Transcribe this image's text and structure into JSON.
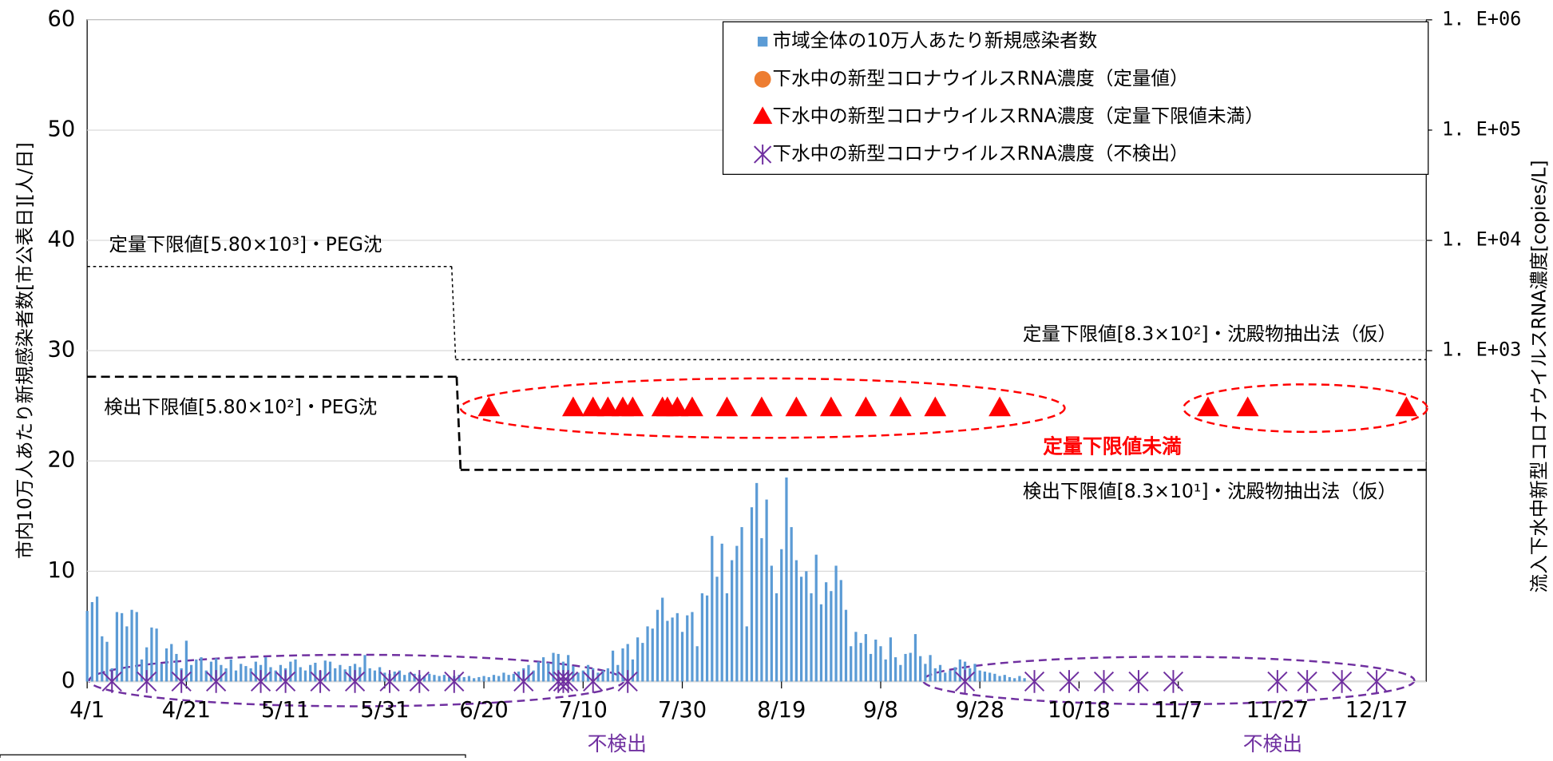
{
  "chart_data": {
    "type": "bar_scatter",
    "ylabel": "市内10万人あたり新規感染者数[市公表日][人/日]",
    "y2label": "流入下水中新型コロナウイルスRNA濃度[copies/L]",
    "xlim": [
      0,
      270
    ],
    "xticks": [
      {
        "value": 0,
        "label": "4/1"
      },
      {
        "value": 20,
        "label": "4/21"
      },
      {
        "value": 40,
        "label": "5/11"
      },
      {
        "value": 60,
        "label": "5/31"
      },
      {
        "value": 80,
        "label": "6/20"
      },
      {
        "value": 100,
        "label": "7/10"
      },
      {
        "value": 120,
        "label": "7/30"
      },
      {
        "value": 140,
        "label": "8/19"
      },
      {
        "value": 160,
        "label": "9/8"
      },
      {
        "value": 180,
        "label": "9/28"
      },
      {
        "value": 200,
        "label": "10/18"
      },
      {
        "value": 220,
        "label": "11/7"
      },
      {
        "value": 240,
        "label": "11/27"
      },
      {
        "value": 260,
        "label": "12/17"
      }
    ],
    "ylim": [
      0,
      60
    ],
    "yticks": [
      0,
      10,
      20,
      30,
      40,
      50,
      60
    ],
    "grid": true,
    "y2lim": [
      1,
      1000000
    ],
    "y2scale": "log",
    "y2ticks": [
      {
        "value": 1000,
        "label": "1. E+03"
      },
      {
        "value": 10000,
        "label": "1. E+04"
      },
      {
        "value": 100000,
        "label": "1. E+05"
      },
      {
        "value": 1000000,
        "label": "1. E+06"
      }
    ],
    "series": [
      {
        "name": "市域全体の10万人あたり新規感染者数",
        "kind": "bar",
        "color": "#5b9bd5",
        "x": [
          0,
          1,
          2,
          3,
          4,
          5,
          6,
          7,
          8,
          9,
          10,
          11,
          12,
          13,
          14,
          15,
          16,
          17,
          18,
          19,
          20,
          21,
          22,
          23,
          24,
          25,
          26,
          27,
          28,
          29,
          30,
          31,
          32,
          33,
          34,
          35,
          36,
          37,
          38,
          39,
          40,
          41,
          42,
          43,
          44,
          45,
          46,
          47,
          48,
          49,
          50,
          51,
          52,
          53,
          54,
          55,
          56,
          57,
          58,
          59,
          60,
          61,
          62,
          63,
          64,
          65,
          66,
          67,
          68,
          69,
          70,
          71,
          72,
          73,
          74,
          75,
          76,
          77,
          78,
          79,
          80,
          81,
          82,
          83,
          84,
          85,
          86,
          87,
          88,
          89,
          90,
          91,
          92,
          93,
          94,
          95,
          96,
          97,
          98,
          99,
          100,
          101,
          102,
          103,
          104,
          105,
          106,
          107,
          108,
          109,
          110,
          111,
          112,
          113,
          114,
          115,
          116,
          117,
          118,
          119,
          120,
          121,
          122,
          123,
          124,
          125,
          126,
          127,
          128,
          129,
          130,
          131,
          132,
          133,
          134,
          135,
          136,
          137,
          138,
          139,
          140,
          141,
          142,
          143,
          144,
          145,
          146,
          147,
          148,
          149,
          150,
          151,
          152,
          153,
          154,
          155,
          156,
          157,
          158,
          159,
          160,
          161,
          162,
          163,
          164,
          165,
          166,
          167,
          168,
          169,
          170,
          171,
          172,
          173,
          174,
          175,
          176,
          177,
          178,
          179,
          180,
          181,
          182,
          183,
          184,
          185,
          186,
          187,
          188,
          189
        ],
        "values": [
          6.4,
          7.2,
          7.7,
          4.1,
          3.6,
          1.2,
          6.3,
          6.2,
          5.0,
          6.5,
          6.3,
          2.0,
          3.1,
          4.9,
          4.8,
          1.6,
          3.0,
          3.4,
          2.5,
          1.2,
          3.7,
          1.5,
          2.0,
          2.2,
          1.0,
          1.8,
          2.1,
          1.5,
          1.2,
          2.0,
          1.0,
          1.6,
          1.4,
          1.2,
          1.8,
          1.5,
          2.2,
          1.3,
          1.0,
          1.5,
          1.2,
          1.8,
          2.0,
          1.3,
          1.0,
          1.5,
          1.7,
          1.0,
          1.9,
          1.8,
          1.2,
          1.5,
          1.1,
          1.4,
          1.6,
          1.3,
          2.4,
          1.2,
          1.0,
          1.3,
          0.8,
          0.7,
          0.9,
          1.0,
          0.6,
          0.8,
          0.7,
          0.6,
          0.5,
          0.7,
          0.6,
          0.5,
          0.6,
          0.4,
          0.5,
          0.6,
          0.4,
          0.5,
          0.3,
          0.4,
          0.5,
          0.4,
          0.6,
          0.5,
          0.8,
          0.6,
          0.7,
          0.9,
          1.2,
          1.5,
          1.0,
          1.8,
          2.2,
          1.7,
          2.6,
          2.5,
          1.8,
          2.4,
          1.4,
          0.8,
          1.0,
          1.5,
          1.2,
          0.8,
          1.0,
          1.2,
          2.8,
          1.5,
          3.0,
          3.4,
          2.0,
          4.0,
          3.5,
          5.0,
          4.8,
          6.5,
          7.6,
          5.5,
          5.8,
          6.2,
          4.5,
          6.0,
          6.3,
          3.2,
          8.0,
          7.8,
          13.2,
          9.5,
          12.5,
          8.0,
          11.0,
          12.3,
          14.0,
          5.0,
          15.8,
          18.0,
          13.0,
          16.5,
          10.5,
          8.0,
          12.0,
          18.5,
          14.0,
          11.0,
          9.5,
          10.0,
          8.0,
          11.5,
          7.0,
          9.0,
          8.2,
          10.5,
          9.2,
          6.5,
          3.2,
          4.5,
          3.5,
          4.3,
          2.5,
          3.8,
          3.2,
          2.0,
          4.0,
          2.2,
          1.5,
          2.5,
          2.6,
          4.3,
          2.3,
          1.6,
          2.4,
          1.2,
          1.5,
          0.8,
          1.0,
          1.3,
          2.0,
          1.8,
          1.2,
          1.6,
          1.0,
          0.9,
          0.8,
          0.7,
          0.5,
          0.6,
          0.4,
          0.3,
          0.5,
          0.3
        ]
      },
      {
        "name": "下水中の新型コロナウイルスRNA濃度（定量値）",
        "kind": "circle",
        "axis": "y2",
        "color": "#ed7d31",
        "x": [],
        "values": []
      },
      {
        "name": "下水中の新型コロナウイルスRNA濃度（定量下限値未満）",
        "kind": "triangle",
        "axis": "y2",
        "color": "#ff0000",
        "x": [
          81,
          98,
          102,
          105,
          108,
          110,
          116,
          117,
          119,
          122,
          129,
          136,
          143,
          150,
          157,
          164,
          171,
          184,
          226,
          234,
          266
        ],
        "values": [
          300,
          300,
          300,
          300,
          300,
          300,
          300,
          300,
          300,
          300,
          300,
          300,
          300,
          300,
          300,
          300,
          300,
          300,
          300,
          300,
          300
        ]
      },
      {
        "name": "下水中の新型コロナウイルスRNA濃度（不検出）",
        "kind": "star",
        "axis": "y2",
        "color": "#7030a0",
        "x": [
          5,
          12,
          19,
          26,
          35,
          40,
          47,
          54,
          61,
          67,
          74,
          88,
          95,
          96,
          97,
          102,
          109,
          177,
          191,
          198,
          205,
          212,
          219,
          240,
          246,
          253,
          260
        ],
        "values": [
          1,
          1,
          1,
          1,
          1,
          1,
          1,
          1,
          1,
          1,
          1,
          1,
          1,
          1,
          1,
          1,
          1,
          1,
          1,
          1,
          1,
          1,
          1,
          1,
          1,
          1,
          1
        ]
      }
    ],
    "limit_lines": [
      {
        "labels": [
          "定量下限値[5.80×10³]・PEG沈",
          "定量下限値[8.3×10²]・沈殿物抽出法（仮）"
        ],
        "values": [
          5800,
          830
        ],
        "change_x": 73.5,
        "style": "dotted"
      },
      {
        "labels": [
          "検出下限値[5.80×10²]・PEG沈",
          "検出下限値[8.3×10¹]・沈殿物抽出法（仮）"
        ],
        "values": [
          580,
          83
        ],
        "change_x": 74.5,
        "style": "dashed"
      }
    ],
    "annotations": [
      "定量下限値未満",
      "不検出",
      "不検出"
    ]
  }
}
